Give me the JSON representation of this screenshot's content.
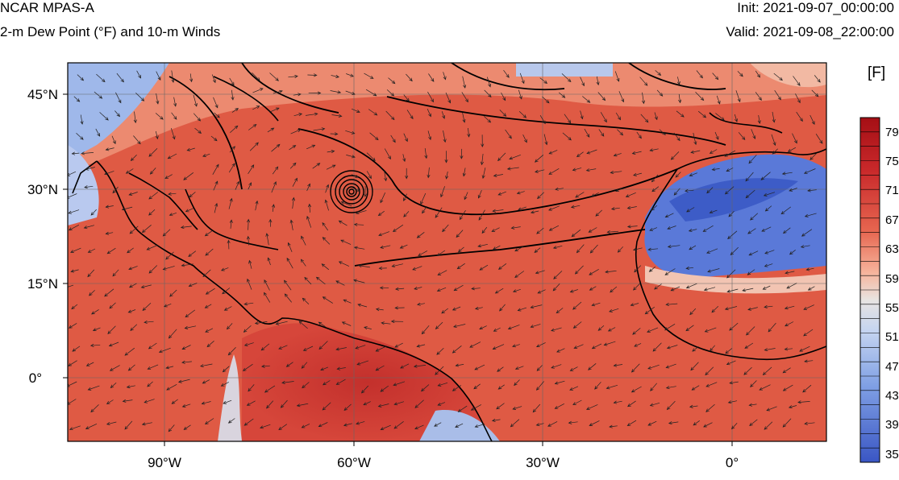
{
  "header": {
    "title": "NCAR MPAS-A",
    "subtitle": "2-m Dew Point (°F) and 10-m Winds",
    "init": "Init: 2021-09-07_00:00:00",
    "valid": "Valid: 2021-09-08_22:00:00"
  },
  "map": {
    "lat_labels": [
      "45°N",
      "30°N",
      "15°N",
      "0°"
    ],
    "lon_labels": [
      "90°W",
      "60°W",
      "30°W",
      "0°"
    ],
    "lat_range": [
      -10,
      50
    ],
    "lon_range": [
      -105,
      15
    ],
    "features": [
      "dew-point-shading",
      "wind-vectors",
      "pressure-contours",
      "coastlines",
      "hurricane-center"
    ],
    "hurricane_center": {
      "lat": 29,
      "lon": -60
    }
  },
  "colorbar": {
    "unit": "[F]",
    "labels": [
      "79",
      "75",
      "71",
      "67",
      "63",
      "59",
      "55",
      "51",
      "47",
      "43",
      "39",
      "35"
    ],
    "colors": {
      "dark_red": "#a50f15",
      "red": "#d6463a",
      "salmon": "#ee8a72",
      "white": "#e6e6e6",
      "light_blue": "#a7c3ee",
      "blue": "#3a5cc9"
    }
  }
}
